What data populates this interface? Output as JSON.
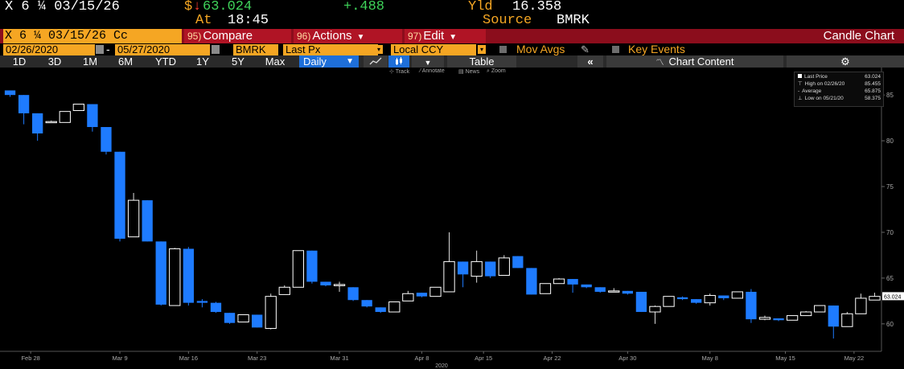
{
  "header": {
    "ticker_line": "X 6 ¼ 03/15/26",
    "price_prefix": "$",
    "down_arrow": "↓",
    "price": "63.024",
    "change": "+.488",
    "yield_label": "Yld",
    "yield_value": "16.358",
    "time_label": "At",
    "time_value": "18:45",
    "source_label": "Source",
    "source_value": "BMRK"
  },
  "toolbar": {
    "security": "X 6 ¼ 03/15/26 Cc",
    "compare_num": "95)",
    "compare_label": "Compare",
    "actions_num": "96)",
    "actions_label": "Actions",
    "edit_num": "97)",
    "edit_label": "Edit",
    "chart_type": "Candle Chart"
  },
  "settings": {
    "start_date": "02/26/2020",
    "end_date": "05/27/2020",
    "source": "BMRK",
    "field": "Last Px",
    "currency": "Local CCY",
    "mov_avgs": "Mov Avgs",
    "key_events": "Key Events"
  },
  "periods": [
    "1D",
    "3D",
    "1M",
    "6M",
    "YTD",
    "1Y",
    "5Y",
    "Max"
  ],
  "frequency": "Daily",
  "table_label": "Table",
  "chart_content_label": "Chart Content",
  "tools": {
    "track": "Track",
    "annotate": "Annotate",
    "news": "News",
    "zoom": "Zoom"
  },
  "legend": {
    "last_price_label": "Last Price",
    "last_price_value": "63.024",
    "high_label": "High on 02/26/20",
    "high_value": "85.455",
    "average_label": "Average",
    "average_value": "65.875",
    "low_label": "Low on 05/21/20",
    "low_value": "58.375"
  },
  "colors": {
    "up": "#ffffff",
    "down": "#1e7bff",
    "accent": "#f5a623",
    "positive": "#3fd45a",
    "negative": "#ff3b30"
  },
  "chart_data": {
    "type": "candlestick",
    "ylim": [
      57,
      88
    ],
    "y_ticks": [
      60,
      65,
      70,
      75,
      80,
      85
    ],
    "x_tick_labels": [
      "Feb 28",
      "Mar 9",
      "Mar 16",
      "Mar 23",
      "Mar 31",
      "Apr 8",
      "Apr 15",
      "Apr 22",
      "Apr 30",
      "May 8",
      "May 15",
      "May 22"
    ],
    "x_tick_index": [
      1.5,
      8,
      13,
      18,
      24,
      30,
      34.5,
      39.5,
      45,
      51,
      56.5,
      61.5
    ],
    "year_label": "2020",
    "last_price_tag": "63.024",
    "last_price": 63.024,
    "candles": [
      {
        "o": 85.5,
        "h": 85.5,
        "l": 84.8,
        "c": 85.0
      },
      {
        "o": 85.0,
        "h": 85.0,
        "l": 81.8,
        "c": 83.0
      },
      {
        "o": 83.0,
        "h": 83.0,
        "l": 80.0,
        "c": 80.8
      },
      {
        "o": 82.0,
        "h": 82.2,
        "l": 82.0,
        "c": 82.1
      },
      {
        "o": 82.0,
        "h": 83.2,
        "l": 82.0,
        "c": 83.2
      },
      {
        "o": 83.3,
        "h": 84.0,
        "l": 83.3,
        "c": 84.0
      },
      {
        "o": 84.0,
        "h": 84.0,
        "l": 81.0,
        "c": 81.5
      },
      {
        "o": 81.5,
        "h": 81.5,
        "l": 78.5,
        "c": 78.8
      },
      {
        "o": 78.8,
        "h": 78.8,
        "l": 69.0,
        "c": 69.3
      },
      {
        "o": 69.5,
        "h": 74.3,
        "l": 69.5,
        "c": 73.5
      },
      {
        "o": 73.5,
        "h": 73.5,
        "l": 69.0,
        "c": 69.0
      },
      {
        "o": 69.0,
        "h": 69.0,
        "l": 62.0,
        "c": 62.1
      },
      {
        "o": 62.0,
        "h": 68.3,
        "l": 62.0,
        "c": 68.2
      },
      {
        "o": 68.2,
        "h": 68.4,
        "l": 62.0,
        "c": 62.3
      },
      {
        "o": 62.5,
        "h": 62.7,
        "l": 61.8,
        "c": 62.3
      },
      {
        "o": 62.3,
        "h": 62.4,
        "l": 61.2,
        "c": 61.3
      },
      {
        "o": 61.2,
        "h": 61.2,
        "l": 60.0,
        "c": 60.1
      },
      {
        "o": 60.2,
        "h": 61.0,
        "l": 60.2,
        "c": 61.0
      },
      {
        "o": 61.0,
        "h": 61.0,
        "l": 59.6,
        "c": 59.6
      },
      {
        "o": 59.5,
        "h": 63.3,
        "l": 59.4,
        "c": 63.0
      },
      {
        "o": 63.2,
        "h": 64.2,
        "l": 63.2,
        "c": 64.0
      },
      {
        "o": 64.0,
        "h": 68.0,
        "l": 64.0,
        "c": 68.0
      },
      {
        "o": 68.0,
        "h": 68.0,
        "l": 64.4,
        "c": 64.6
      },
      {
        "o": 64.6,
        "h": 64.6,
        "l": 64.1,
        "c": 64.2
      },
      {
        "o": 64.3,
        "h": 64.6,
        "l": 63.5,
        "c": 64.3
      },
      {
        "o": 64.0,
        "h": 64.0,
        "l": 62.5,
        "c": 62.6
      },
      {
        "o": 62.6,
        "h": 62.6,
        "l": 61.8,
        "c": 61.9
      },
      {
        "o": 61.8,
        "h": 61.8,
        "l": 61.2,
        "c": 61.3
      },
      {
        "o": 61.3,
        "h": 62.4,
        "l": 61.3,
        "c": 62.4
      },
      {
        "o": 62.5,
        "h": 63.6,
        "l": 62.5,
        "c": 63.3
      },
      {
        "o": 63.4,
        "h": 63.4,
        "l": 62.9,
        "c": 63.0
      },
      {
        "o": 63.0,
        "h": 64.0,
        "l": 63.0,
        "c": 64.0
      },
      {
        "o": 63.5,
        "h": 70.0,
        "l": 63.5,
        "c": 66.8
      },
      {
        "o": 66.8,
        "h": 66.8,
        "l": 64.0,
        "c": 65.4
      },
      {
        "o": 65.2,
        "h": 68.0,
        "l": 64.5,
        "c": 66.8
      },
      {
        "o": 66.8,
        "h": 66.8,
        "l": 65.0,
        "c": 65.2
      },
      {
        "o": 65.3,
        "h": 67.5,
        "l": 65.3,
        "c": 67.2
      },
      {
        "o": 67.4,
        "h": 67.4,
        "l": 66.1,
        "c": 66.1
      },
      {
        "o": 66.1,
        "h": 66.1,
        "l": 63.2,
        "c": 63.2
      },
      {
        "o": 63.3,
        "h": 64.4,
        "l": 63.3,
        "c": 64.4
      },
      {
        "o": 64.4,
        "h": 65.0,
        "l": 64.4,
        "c": 64.9
      },
      {
        "o": 64.9,
        "h": 64.9,
        "l": 63.4,
        "c": 64.3
      },
      {
        "o": 64.3,
        "h": 64.3,
        "l": 63.9,
        "c": 64.0
      },
      {
        "o": 64.0,
        "h": 64.0,
        "l": 63.4,
        "c": 63.5
      },
      {
        "o": 63.5,
        "h": 63.9,
        "l": 63.5,
        "c": 63.6
      },
      {
        "o": 63.6,
        "h": 63.6,
        "l": 63.2,
        "c": 63.3
      },
      {
        "o": 63.5,
        "h": 63.5,
        "l": 61.3,
        "c": 61.3
      },
      {
        "o": 61.3,
        "h": 62.0,
        "l": 60.0,
        "c": 61.9
      },
      {
        "o": 61.9,
        "h": 63.0,
        "l": 61.9,
        "c": 63.0
      },
      {
        "o": 62.9,
        "h": 63.0,
        "l": 62.6,
        "c": 62.7
      },
      {
        "o": 62.7,
        "h": 62.7,
        "l": 62.2,
        "c": 62.3
      },
      {
        "o": 62.3,
        "h": 63.3,
        "l": 62.0,
        "c": 63.1
      },
      {
        "o": 63.1,
        "h": 63.1,
        "l": 62.6,
        "c": 62.8
      },
      {
        "o": 62.8,
        "h": 63.5,
        "l": 62.8,
        "c": 63.5
      },
      {
        "o": 63.5,
        "h": 63.8,
        "l": 60.1,
        "c": 60.5
      },
      {
        "o": 60.5,
        "h": 60.9,
        "l": 60.4,
        "c": 60.7
      },
      {
        "o": 60.6,
        "h": 60.6,
        "l": 60.3,
        "c": 60.4
      },
      {
        "o": 60.4,
        "h": 60.9,
        "l": 60.4,
        "c": 60.9
      },
      {
        "o": 60.9,
        "h": 61.4,
        "l": 60.9,
        "c": 61.3
      },
      {
        "o": 61.3,
        "h": 62.0,
        "l": 61.3,
        "c": 62.0
      },
      {
        "o": 62.0,
        "h": 62.0,
        "l": 58.4,
        "c": 59.7
      },
      {
        "o": 59.7,
        "h": 61.3,
        "l": 59.7,
        "c": 61.1
      },
      {
        "o": 61.1,
        "h": 63.3,
        "l": 61.1,
        "c": 62.8
      },
      {
        "o": 62.6,
        "h": 63.4,
        "l": 62.6,
        "c": 63.0
      }
    ]
  }
}
